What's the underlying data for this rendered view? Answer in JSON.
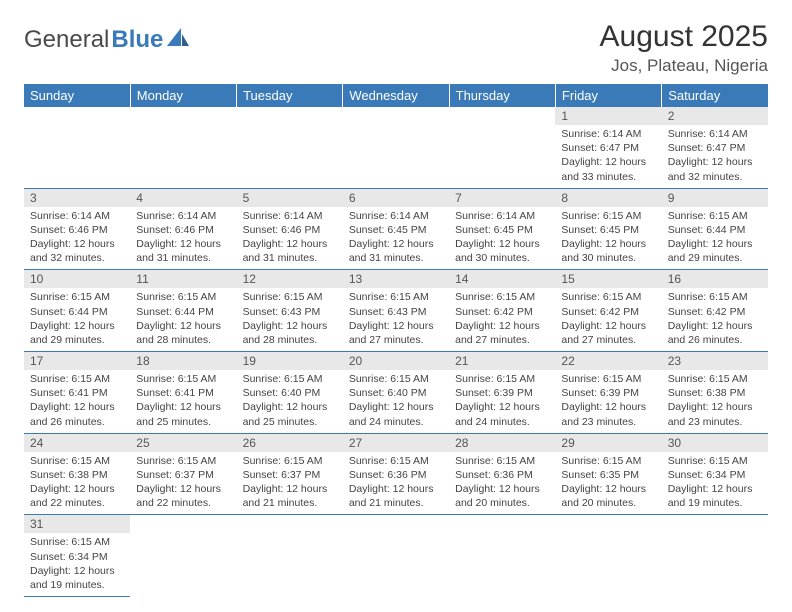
{
  "logo": {
    "text1": "General",
    "text2": "Blue"
  },
  "title": "August 2025",
  "location": "Jos, Plateau, Nigeria",
  "colors": {
    "header_bg": "#3a7ab8",
    "header_text": "#ffffff",
    "daynum_bg": "#e8e8e8",
    "border": "#3a7ab8",
    "logo_blue": "#3a7ab8"
  },
  "weekdays": [
    "Sunday",
    "Monday",
    "Tuesday",
    "Wednesday",
    "Thursday",
    "Friday",
    "Saturday"
  ],
  "weeks": [
    [
      null,
      null,
      null,
      null,
      null,
      {
        "n": "1",
        "sr": "Sunrise: 6:14 AM",
        "ss": "Sunset: 6:47 PM",
        "d1": "Daylight: 12 hours",
        "d2": "and 33 minutes."
      },
      {
        "n": "2",
        "sr": "Sunrise: 6:14 AM",
        "ss": "Sunset: 6:47 PM",
        "d1": "Daylight: 12 hours",
        "d2": "and 32 minutes."
      }
    ],
    [
      {
        "n": "3",
        "sr": "Sunrise: 6:14 AM",
        "ss": "Sunset: 6:46 PM",
        "d1": "Daylight: 12 hours",
        "d2": "and 32 minutes."
      },
      {
        "n": "4",
        "sr": "Sunrise: 6:14 AM",
        "ss": "Sunset: 6:46 PM",
        "d1": "Daylight: 12 hours",
        "d2": "and 31 minutes."
      },
      {
        "n": "5",
        "sr": "Sunrise: 6:14 AM",
        "ss": "Sunset: 6:46 PM",
        "d1": "Daylight: 12 hours",
        "d2": "and 31 minutes."
      },
      {
        "n": "6",
        "sr": "Sunrise: 6:14 AM",
        "ss": "Sunset: 6:45 PM",
        "d1": "Daylight: 12 hours",
        "d2": "and 31 minutes."
      },
      {
        "n": "7",
        "sr": "Sunrise: 6:14 AM",
        "ss": "Sunset: 6:45 PM",
        "d1": "Daylight: 12 hours",
        "d2": "and 30 minutes."
      },
      {
        "n": "8",
        "sr": "Sunrise: 6:15 AM",
        "ss": "Sunset: 6:45 PM",
        "d1": "Daylight: 12 hours",
        "d2": "and 30 minutes."
      },
      {
        "n": "9",
        "sr": "Sunrise: 6:15 AM",
        "ss": "Sunset: 6:44 PM",
        "d1": "Daylight: 12 hours",
        "d2": "and 29 minutes."
      }
    ],
    [
      {
        "n": "10",
        "sr": "Sunrise: 6:15 AM",
        "ss": "Sunset: 6:44 PM",
        "d1": "Daylight: 12 hours",
        "d2": "and 29 minutes."
      },
      {
        "n": "11",
        "sr": "Sunrise: 6:15 AM",
        "ss": "Sunset: 6:44 PM",
        "d1": "Daylight: 12 hours",
        "d2": "and 28 minutes."
      },
      {
        "n": "12",
        "sr": "Sunrise: 6:15 AM",
        "ss": "Sunset: 6:43 PM",
        "d1": "Daylight: 12 hours",
        "d2": "and 28 minutes."
      },
      {
        "n": "13",
        "sr": "Sunrise: 6:15 AM",
        "ss": "Sunset: 6:43 PM",
        "d1": "Daylight: 12 hours",
        "d2": "and 27 minutes."
      },
      {
        "n": "14",
        "sr": "Sunrise: 6:15 AM",
        "ss": "Sunset: 6:42 PM",
        "d1": "Daylight: 12 hours",
        "d2": "and 27 minutes."
      },
      {
        "n": "15",
        "sr": "Sunrise: 6:15 AM",
        "ss": "Sunset: 6:42 PM",
        "d1": "Daylight: 12 hours",
        "d2": "and 27 minutes."
      },
      {
        "n": "16",
        "sr": "Sunrise: 6:15 AM",
        "ss": "Sunset: 6:42 PM",
        "d1": "Daylight: 12 hours",
        "d2": "and 26 minutes."
      }
    ],
    [
      {
        "n": "17",
        "sr": "Sunrise: 6:15 AM",
        "ss": "Sunset: 6:41 PM",
        "d1": "Daylight: 12 hours",
        "d2": "and 26 minutes."
      },
      {
        "n": "18",
        "sr": "Sunrise: 6:15 AM",
        "ss": "Sunset: 6:41 PM",
        "d1": "Daylight: 12 hours",
        "d2": "and 25 minutes."
      },
      {
        "n": "19",
        "sr": "Sunrise: 6:15 AM",
        "ss": "Sunset: 6:40 PM",
        "d1": "Daylight: 12 hours",
        "d2": "and 25 minutes."
      },
      {
        "n": "20",
        "sr": "Sunrise: 6:15 AM",
        "ss": "Sunset: 6:40 PM",
        "d1": "Daylight: 12 hours",
        "d2": "and 24 minutes."
      },
      {
        "n": "21",
        "sr": "Sunrise: 6:15 AM",
        "ss": "Sunset: 6:39 PM",
        "d1": "Daylight: 12 hours",
        "d2": "and 24 minutes."
      },
      {
        "n": "22",
        "sr": "Sunrise: 6:15 AM",
        "ss": "Sunset: 6:39 PM",
        "d1": "Daylight: 12 hours",
        "d2": "and 23 minutes."
      },
      {
        "n": "23",
        "sr": "Sunrise: 6:15 AM",
        "ss": "Sunset: 6:38 PM",
        "d1": "Daylight: 12 hours",
        "d2": "and 23 minutes."
      }
    ],
    [
      {
        "n": "24",
        "sr": "Sunrise: 6:15 AM",
        "ss": "Sunset: 6:38 PM",
        "d1": "Daylight: 12 hours",
        "d2": "and 22 minutes."
      },
      {
        "n": "25",
        "sr": "Sunrise: 6:15 AM",
        "ss": "Sunset: 6:37 PM",
        "d1": "Daylight: 12 hours",
        "d2": "and 22 minutes."
      },
      {
        "n": "26",
        "sr": "Sunrise: 6:15 AM",
        "ss": "Sunset: 6:37 PM",
        "d1": "Daylight: 12 hours",
        "d2": "and 21 minutes."
      },
      {
        "n": "27",
        "sr": "Sunrise: 6:15 AM",
        "ss": "Sunset: 6:36 PM",
        "d1": "Daylight: 12 hours",
        "d2": "and 21 minutes."
      },
      {
        "n": "28",
        "sr": "Sunrise: 6:15 AM",
        "ss": "Sunset: 6:36 PM",
        "d1": "Daylight: 12 hours",
        "d2": "and 20 minutes."
      },
      {
        "n": "29",
        "sr": "Sunrise: 6:15 AM",
        "ss": "Sunset: 6:35 PM",
        "d1": "Daylight: 12 hours",
        "d2": "and 20 minutes."
      },
      {
        "n": "30",
        "sr": "Sunrise: 6:15 AM",
        "ss": "Sunset: 6:34 PM",
        "d1": "Daylight: 12 hours",
        "d2": "and 19 minutes."
      }
    ],
    [
      {
        "n": "31",
        "sr": "Sunrise: 6:15 AM",
        "ss": "Sunset: 6:34 PM",
        "d1": "Daylight: 12 hours",
        "d2": "and 19 minutes."
      },
      null,
      null,
      null,
      null,
      null,
      null
    ]
  ]
}
